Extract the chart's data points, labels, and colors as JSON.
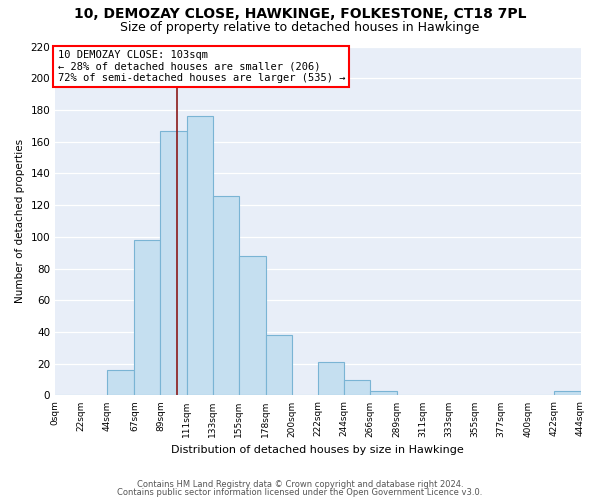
{
  "title": "10, DEMOZAY CLOSE, HAWKINGE, FOLKESTONE, CT18 7PL",
  "subtitle": "Size of property relative to detached houses in Hawkinge",
  "xlabel": "Distribution of detached houses by size in Hawkinge",
  "ylabel": "Number of detached properties",
  "bar_edges": [
    0,
    22,
    44,
    67,
    89,
    111,
    133,
    155,
    178,
    200,
    222,
    244,
    266,
    289,
    311,
    333,
    355,
    377,
    400,
    422,
    444
  ],
  "bar_heights": [
    0,
    0,
    16,
    98,
    167,
    176,
    126,
    88,
    38,
    0,
    21,
    10,
    3,
    0,
    0,
    0,
    0,
    0,
    0,
    3
  ],
  "bar_color": "#c5dff0",
  "bar_edgecolor": "#7ab4d4",
  "tick_labels": [
    "0sqm",
    "22sqm",
    "44sqm",
    "67sqm",
    "89sqm",
    "111sqm",
    "133sqm",
    "155sqm",
    "178sqm",
    "200sqm",
    "222sqm",
    "244sqm",
    "266sqm",
    "289sqm",
    "311sqm",
    "333sqm",
    "355sqm",
    "377sqm",
    "400sqm",
    "422sqm",
    "444sqm"
  ],
  "vline_x": 103,
  "vline_color": "#8b1a1a",
  "annotation_line1": "10 DEMOZAY CLOSE: 103sqm",
  "annotation_line2": "← 28% of detached houses are smaller (206)",
  "annotation_line3": "72% of semi-detached houses are larger (535) →",
  "ylim": [
    0,
    220
  ],
  "yticks": [
    0,
    20,
    40,
    60,
    80,
    100,
    120,
    140,
    160,
    180,
    200,
    220
  ],
  "footer_line1": "Contains HM Land Registry data © Crown copyright and database right 2024.",
  "footer_line2": "Contains public sector information licensed under the Open Government Licence v3.0.",
  "background_color": "#e8eef8",
  "grid_color": "#ffffff",
  "title_fontsize": 10,
  "subtitle_fontsize": 9
}
